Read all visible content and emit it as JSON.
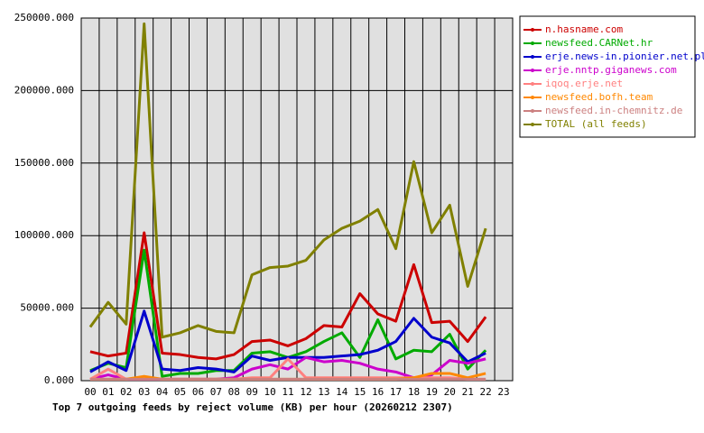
{
  "chart_data": {
    "type": "line",
    "title": "Top 7 outgoing feeds by reject volume (KB) per hour (20260212 2307)",
    "categories": [
      "00",
      "01",
      "02",
      "03",
      "04",
      "05",
      "06",
      "07",
      "08",
      "09",
      "10",
      "11",
      "12",
      "13",
      "14",
      "15",
      "16",
      "17",
      "18",
      "19",
      "20",
      "21",
      "22",
      "23"
    ],
    "ylim": [
      0,
      250000
    ],
    "yticks": [
      {
        "value": 0,
        "label": "0.000"
      },
      {
        "value": 50000,
        "label": "50000.000"
      },
      {
        "value": 100000,
        "label": "100000.000"
      },
      {
        "value": 150000,
        "label": "150000.000"
      },
      {
        "value": 200000,
        "label": "200000.000"
      },
      {
        "value": 250000,
        "label": "250000.000"
      }
    ],
    "grid": true,
    "legend": "outside-top-right",
    "series": [
      {
        "name": "n.hasname.com",
        "color": "#cc0000",
        "values": [
          20000,
          17000,
          19000,
          102000,
          19000,
          18000,
          16000,
          15000,
          18000,
          27000,
          28000,
          24000,
          29000,
          38000,
          37000,
          60000,
          46000,
          41000,
          80000,
          40000,
          41000,
          27000,
          44000,
          null
        ]
      },
      {
        "name": "newsfeed.CARNet.hr",
        "color": "#00aa00",
        "values": [
          7000,
          12000,
          9000,
          90000,
          3000,
          5000,
          5000,
          7000,
          7000,
          19000,
          20000,
          16000,
          20000,
          27000,
          33000,
          16000,
          42000,
          15000,
          21000,
          20000,
          32000,
          8000,
          21000,
          null
        ]
      },
      {
        "name": "erje.news-in.pionier.net.pl",
        "color": "#0000cc",
        "values": [
          6000,
          13000,
          7000,
          48000,
          8000,
          7000,
          9000,
          8000,
          6000,
          17000,
          14000,
          16000,
          16000,
          16000,
          17000,
          18000,
          21000,
          27000,
          43000,
          30000,
          26000,
          13000,
          19000,
          null
        ]
      },
      {
        "name": "erje.nntp.giganews.com",
        "color": "#cc00cc",
        "values": [
          1000,
          4000,
          1000,
          1000,
          1000,
          1000,
          1000,
          1000,
          2000,
          8000,
          11000,
          8000,
          16000,
          13000,
          14000,
          12000,
          8000,
          6000,
          2000,
          4000,
          14000,
          12000,
          15000,
          null
        ]
      },
      {
        "name": "iqoq.erje.net",
        "color": "#ff8080",
        "values": [
          1000,
          8000,
          1000,
          2000,
          1000,
          1000,
          1000,
          1000,
          1000,
          2000,
          2000,
          15000,
          2000,
          2000,
          2000,
          2000,
          2000,
          2000,
          2000,
          2000,
          2000,
          1000,
          1000,
          null
        ]
      },
      {
        "name": "newsfeed.bofh.team",
        "color": "#ff8800",
        "values": [
          1000,
          1000,
          1000,
          3000,
          1000,
          1000,
          1000,
          1000,
          1000,
          1000,
          1000,
          1000,
          1000,
          1000,
          1000,
          1000,
          1000,
          1000,
          2000,
          5000,
          5000,
          2000,
          5000,
          null
        ]
      },
      {
        "name": "newsfeed.in-chemnitz.de",
        "color": "#cc8080",
        "values": [
          1000,
          1000,
          1000,
          1000,
          1000,
          1000,
          1000,
          1000,
          1000,
          1000,
          1000,
          1000,
          1000,
          1000,
          1000,
          1000,
          1000,
          1000,
          1000,
          1000,
          1000,
          1000,
          1000,
          null
        ]
      },
      {
        "name": "TOTAL (all feeds)",
        "color": "#808000",
        "values": [
          37000,
          54000,
          39000,
          246000,
          30000,
          33000,
          38000,
          34000,
          33000,
          73000,
          78000,
          79000,
          83000,
          97000,
          105000,
          110000,
          118000,
          91000,
          151000,
          102000,
          121000,
          65000,
          105000,
          null
        ]
      }
    ]
  }
}
